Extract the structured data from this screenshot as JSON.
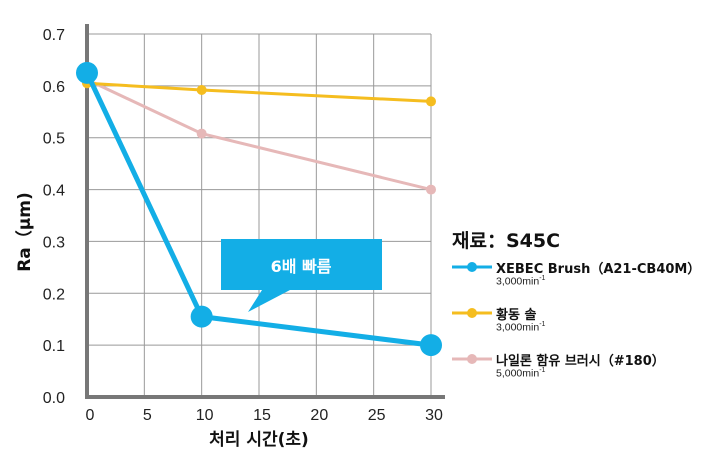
{
  "chart_data": {
    "type": "line",
    "xlabel": "처리 시간(초)",
    "ylabel": "Ra（μm)",
    "xlim": [
      0,
      30
    ],
    "ylim": [
      0,
      0.7
    ],
    "xticks": [
      "0",
      "5",
      "10",
      "15",
      "20",
      "25",
      "30"
    ],
    "yticks": [
      "0.0",
      "0.1",
      "0.2",
      "0.3",
      "0.4",
      "0.5",
      "0.6",
      "0.7"
    ],
    "grid": true,
    "legend_title": "재료：S45C",
    "legend_position": "right",
    "series": [
      {
        "name": "XEBEC Brush（A21-CB40M）",
        "speed": "3,000min",
        "color": "#13aee6",
        "x": [
          0,
          10,
          30
        ],
        "y": [
          0.625,
          0.155,
          0.1
        ]
      },
      {
        "name": "황동 솔",
        "speed": "3,000min",
        "color": "#f5bd1f",
        "x": [
          0,
          10,
          30
        ],
        "y": [
          0.605,
          0.592,
          0.57
        ]
      },
      {
        "name": "나일론 함유 브러시（#180）",
        "speed": "5,000min",
        "color": "#e6b8b8",
        "x": [
          0,
          10,
          30
        ],
        "y": [
          0.612,
          0.508,
          0.4
        ]
      }
    ],
    "speed_exponent": "-1",
    "annotation": {
      "text": "6배 빠름",
      "color": "#13aee6"
    }
  }
}
